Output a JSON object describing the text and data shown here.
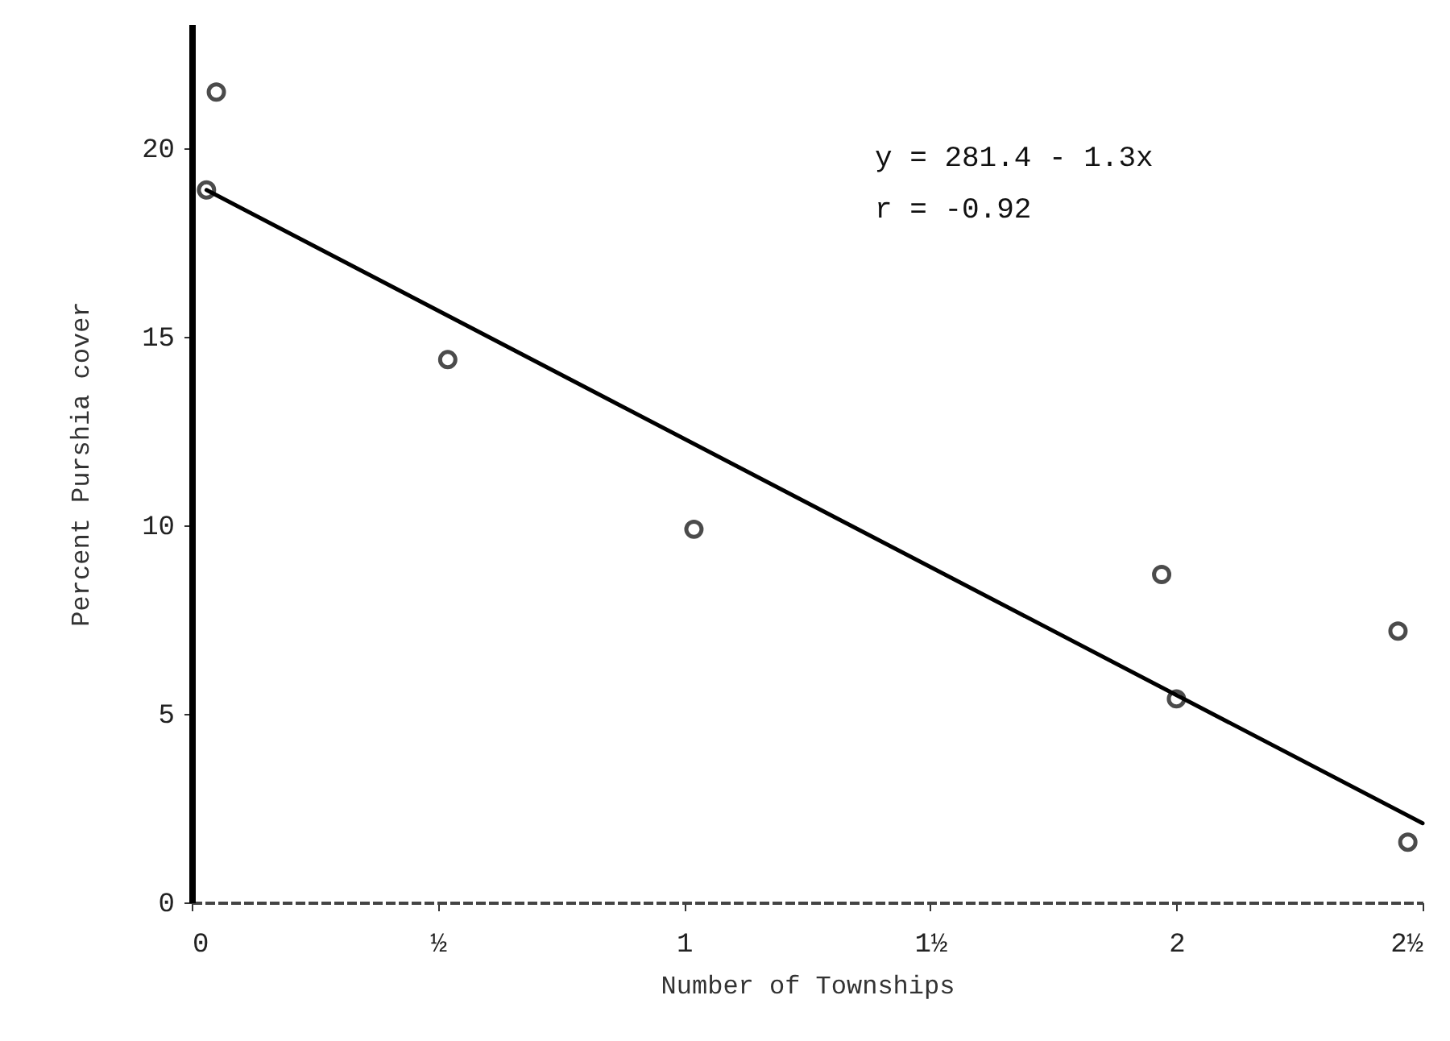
{
  "chart_data": {
    "type": "scatter",
    "xlabel": "Number of Townships",
    "ylabel": "Percent Purshia cover",
    "annotations": [
      "y = 281.4 - 1.3x",
      "r = -0.92"
    ],
    "xlim": [
      0,
      2.5
    ],
    "xticks": [
      0,
      {
        "value": 0.5,
        "label": "½"
      },
      1,
      {
        "value": 1.5,
        "label": "1½"
      },
      2,
      {
        "value": 2.5,
        "label": "2½"
      }
    ],
    "ylim": [
      0,
      23.3
    ],
    "yticks": [
      0,
      5,
      10,
      15,
      20
    ],
    "grid": false,
    "marker": "circle",
    "series": [
      {
        "type": "scatter",
        "color": "#000000",
        "x": [
          0.05,
          0.03,
          0.52,
          1.02,
          1.97,
          2.45,
          2.0,
          2.47
        ],
        "values": [
          21.5,
          18.9,
          14.4,
          9.9,
          8.7,
          7.2,
          5.4,
          1.6
        ]
      },
      {
        "type": "line",
        "color": "#000000",
        "line_style": "solid",
        "marker": "none",
        "x": [
          0.03,
          2.5
        ],
        "values": [
          18.9,
          2.1
        ]
      }
    ]
  }
}
